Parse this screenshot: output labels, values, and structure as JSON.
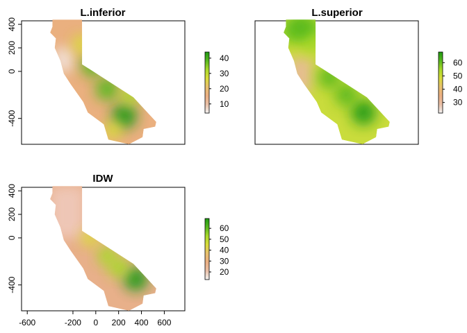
{
  "chart_data": [
    {
      "type": "heatmap",
      "title": "L.inferior",
      "xlim": [
        -650,
        780
      ],
      "ylim": [
        -620,
        430
      ],
      "ytick_labels": [
        "-400",
        "0",
        "200",
        "400"
      ],
      "legend": {
        "position": "right",
        "range": [
          4,
          44
        ],
        "tick_labels": [
          "10",
          "20",
          "30",
          "40"
        ],
        "colors": [
          "#f2f2f2",
          "#e9bfa7",
          "#ebaf82",
          "#e8c06e",
          "#d9dc3a",
          "#a9d92a",
          "#58b81e",
          "#1f9a13"
        ]
      },
      "hotspots": [
        {
          "x": 250,
          "y": -380,
          "value": 44
        },
        {
          "x": 100,
          "y": -150,
          "value": 40
        },
        {
          "x": -30,
          "y": 50,
          "value": 38
        },
        {
          "x": 300,
          "y": -200,
          "value": 32
        },
        {
          "x": -120,
          "y": 230,
          "value": 28
        },
        {
          "x": 150,
          "y": -500,
          "value": 26
        }
      ]
    },
    {
      "type": "heatmap",
      "title": "L.superior",
      "xlim": [
        -650,
        780
      ],
      "ylim": [
        -620,
        430
      ],
      "ytick_labels": [],
      "legend": {
        "position": "right",
        "range": [
          22,
          68
        ],
        "tick_labels": [
          "30",
          "40",
          "50",
          "60"
        ],
        "colors": [
          "#f2f2f2",
          "#e9bfa7",
          "#ebaf82",
          "#e8c06e",
          "#d9dc3a",
          "#a9d92a",
          "#58b81e",
          "#1f9a13"
        ]
      },
      "hotspots": [
        {
          "x": 300,
          "y": -350,
          "value": 68
        },
        {
          "x": 150,
          "y": -200,
          "value": 62
        },
        {
          "x": 0,
          "y": -50,
          "value": 60
        },
        {
          "x": -150,
          "y": 250,
          "value": 58
        },
        {
          "x": -250,
          "y": 380,
          "value": 62
        }
      ]
    },
    {
      "type": "heatmap",
      "title": "IDW",
      "xlim": [
        -650,
        780
      ],
      "ylim": [
        -620,
        430
      ],
      "xtick_labels": [
        "-600",
        "-200",
        "0",
        "200",
        "400",
        "600"
      ],
      "ytick_labels": [
        "-400",
        "0",
        "200",
        "400"
      ],
      "legend": {
        "position": "right",
        "range": [
          13,
          69
        ],
        "tick_labels": [
          "20",
          "30",
          "40",
          "50",
          "60"
        ],
        "colors": [
          "#f2f2f2",
          "#e9bfa7",
          "#ebaf82",
          "#e8c06e",
          "#d9dc3a",
          "#a9d92a",
          "#58b81e",
          "#1f9a13"
        ]
      },
      "hotspots": [
        {
          "x": 350,
          "y": -350,
          "value": 66
        },
        {
          "x": 200,
          "y": -250,
          "value": 55
        },
        {
          "x": 100,
          "y": -150,
          "value": 50
        },
        {
          "x": -50,
          "y": 0,
          "value": 42
        }
      ]
    }
  ]
}
